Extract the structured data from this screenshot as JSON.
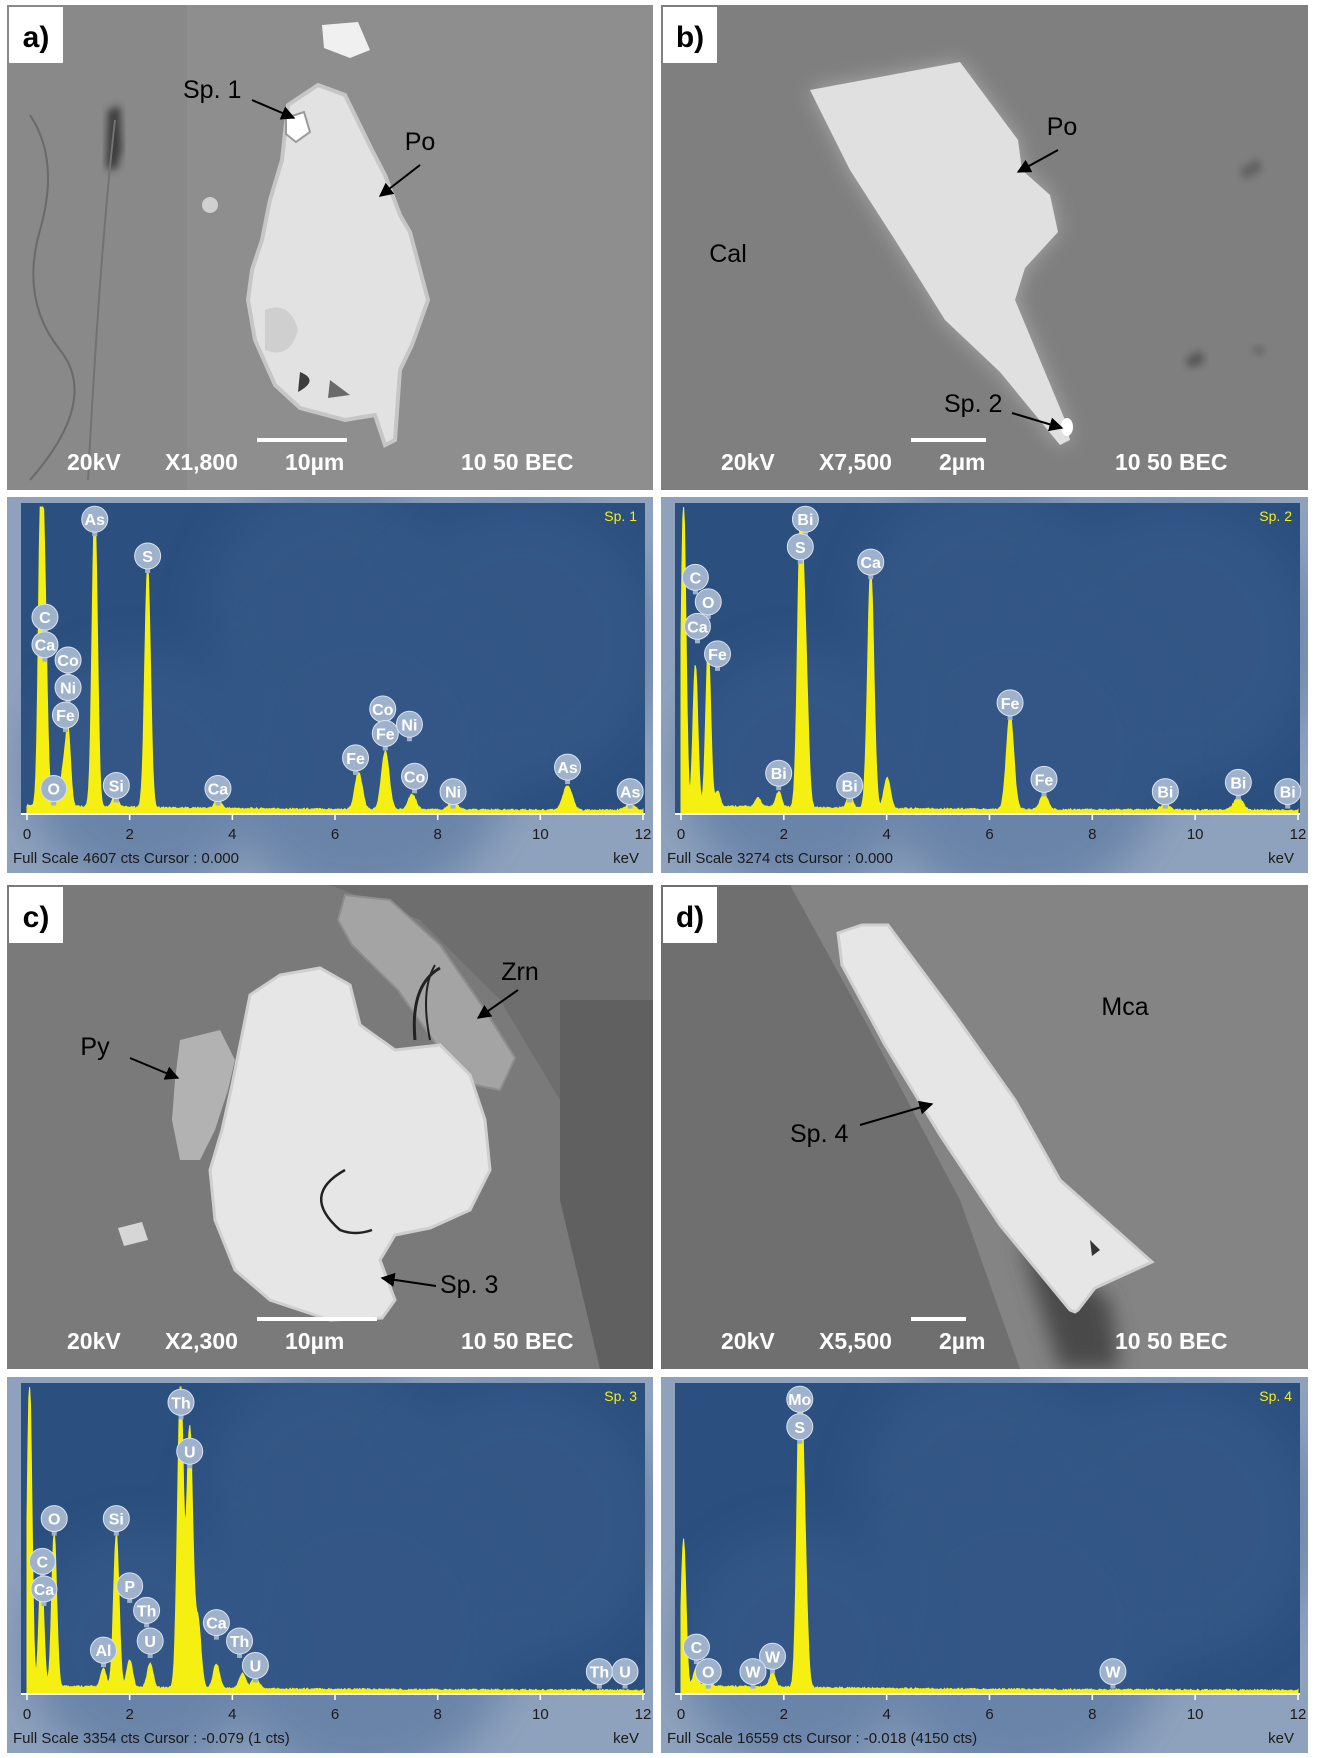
{
  "panels": [
    {
      "id": "a",
      "letter": "a)",
      "mineral_labels": [
        "Po"
      ],
      "spot_label": "Sp. 1",
      "sem_bar": {
        "kv": "20kV",
        "mag": "X1,800",
        "scale": "10µm",
        "mode": "10 50 BEC"
      }
    },
    {
      "id": "b",
      "letter": "b)",
      "mineral_labels": [
        "Po",
        "Cal"
      ],
      "spot_label": "Sp. 2",
      "sem_bar": {
        "kv": "20kV",
        "mag": "X7,500",
        "scale": "2µm",
        "mode": "10 50 BEC"
      }
    },
    {
      "id": "c",
      "letter": "c)",
      "mineral_labels": [
        "Zrn",
        "Py"
      ],
      "spot_label": "Sp. 3",
      "sem_bar": {
        "kv": "20kV",
        "mag": "X2,300",
        "scale": "10µm",
        "mode": "10 50 BEC"
      }
    },
    {
      "id": "d",
      "letter": "d)",
      "mineral_labels": [
        "Mca"
      ],
      "spot_label": "Sp. 4",
      "sem_bar": {
        "kv": "20kV",
        "mag": "X5,500",
        "scale": "2µm",
        "mode": "10 50 BEC"
      }
    }
  ],
  "spectra": [
    {
      "spot": "Sp. 1",
      "footer": {
        "scale_label": "Full Scale",
        "counts": "4607",
        "cts_unit": "cts",
        "cursor": "Cursor : 0.000",
        "extra": "",
        "unit": "keV"
      },
      "peaks": [
        [
          0.27,
          1.0
        ],
        [
          0.35,
          0.56
        ],
        [
          0.52,
          0.07
        ],
        [
          0.7,
          0.11
        ],
        [
          0.8,
          0.25
        ],
        [
          1.32,
          0.99
        ],
        [
          1.72,
          0.04
        ],
        [
          2.35,
          0.79
        ],
        [
          3.72,
          0.03
        ],
        [
          6.46,
          0.12
        ],
        [
          6.98,
          0.19
        ],
        [
          7.5,
          0.05
        ],
        [
          8.3,
          0.03
        ],
        [
          10.53,
          0.08
        ],
        [
          11.75,
          0.02
        ]
      ],
      "element_labels": [
        {
          "el": "As",
          "kev": 1.32,
          "lvl": 0.96
        },
        {
          "el": "S",
          "kev": 2.35,
          "lvl": 0.84
        },
        {
          "el": "C",
          "kev": 0.35,
          "lvl": 0.64
        },
        {
          "el": "Ca",
          "kev": 0.35,
          "lvl": 0.55
        },
        {
          "el": "Co",
          "kev": 0.8,
          "lvl": 0.5
        },
        {
          "el": "Ni",
          "kev": 0.8,
          "lvl": 0.41
        },
        {
          "el": "Fe",
          "kev": 0.75,
          "lvl": 0.32
        },
        {
          "el": "O",
          "kev": 0.52,
          "lvl": 0.08
        },
        {
          "el": "Si",
          "kev": 1.74,
          "lvl": 0.09
        },
        {
          "el": "Ca",
          "kev": 3.72,
          "lvl": 0.08
        },
        {
          "el": "Fe",
          "kev": 6.4,
          "lvl": 0.18
        },
        {
          "el": "Co",
          "kev": 6.93,
          "lvl": 0.34
        },
        {
          "el": "Fe",
          "kev": 6.98,
          "lvl": 0.26
        },
        {
          "el": "Ni",
          "kev": 7.45,
          "lvl": 0.29
        },
        {
          "el": "Co",
          "kev": 7.55,
          "lvl": 0.12
        },
        {
          "el": "Ni",
          "kev": 8.3,
          "lvl": 0.07
        },
        {
          "el": "As",
          "kev": 10.53,
          "lvl": 0.15
        },
        {
          "el": "As",
          "kev": 11.75,
          "lvl": 0.07
        }
      ]
    },
    {
      "spot": "Sp. 2",
      "footer": {
        "scale_label": "Full Scale",
        "counts": "3274",
        "cts_unit": "cts",
        "cursor": "Cursor : 0.000",
        "extra": "",
        "unit": "keV"
      },
      "peaks": [
        [
          0.05,
          1.0
        ],
        [
          0.28,
          0.46
        ],
        [
          0.53,
          0.52
        ],
        [
          0.71,
          0.05
        ],
        [
          1.5,
          0.03
        ],
        [
          1.9,
          0.05
        ],
        [
          2.32,
          0.88
        ],
        [
          2.42,
          0.45
        ],
        [
          3.28,
          0.04
        ],
        [
          3.69,
          0.78
        ],
        [
          4.01,
          0.1
        ],
        [
          6.4,
          0.31
        ],
        [
          7.06,
          0.05
        ],
        [
          9.42,
          0.02
        ],
        [
          10.84,
          0.04
        ]
      ],
      "element_labels": [
        {
          "el": "Bi",
          "kev": 2.42,
          "lvl": 0.96
        },
        {
          "el": "S",
          "kev": 2.32,
          "lvl": 0.87
        },
        {
          "el": "Ca",
          "kev": 3.69,
          "lvl": 0.82
        },
        {
          "el": "C",
          "kev": 0.28,
          "lvl": 0.77
        },
        {
          "el": "O",
          "kev": 0.53,
          "lvl": 0.69
        },
        {
          "el": "Ca",
          "kev": 0.32,
          "lvl": 0.61
        },
        {
          "el": "Fe",
          "kev": 0.71,
          "lvl": 0.52
        },
        {
          "el": "Fe",
          "kev": 6.4,
          "lvl": 0.36
        },
        {
          "el": "Bi",
          "kev": 1.9,
          "lvl": 0.13
        },
        {
          "el": "Bi",
          "kev": 3.28,
          "lvl": 0.09
        },
        {
          "el": "Fe",
          "kev": 7.06,
          "lvl": 0.11
        },
        {
          "el": "Bi",
          "kev": 9.42,
          "lvl": 0.07
        },
        {
          "el": "Bi",
          "kev": 10.84,
          "lvl": 0.1
        },
        {
          "el": "Bi",
          "kev": 11.8,
          "lvl": 0.07
        }
      ]
    },
    {
      "spot": "Sp. 3",
      "footer": {
        "scale_label": "Full Scale",
        "counts": "3354",
        "cts_unit": "cts",
        "cursor": "Cursor : -0.079",
        "extra": "(1 cts)",
        "unit": "keV"
      },
      "peaks": [
        [
          0.05,
          1.0
        ],
        [
          0.28,
          0.38
        ],
        [
          0.53,
          0.5
        ],
        [
          1.49,
          0.06
        ],
        [
          1.74,
          0.5
        ],
        [
          2.0,
          0.09
        ],
        [
          2.4,
          0.08
        ],
        [
          2.99,
          1.0
        ],
        [
          3.17,
          0.85
        ],
        [
          3.33,
          0.22
        ],
        [
          3.69,
          0.08
        ],
        [
          4.2,
          0.05
        ],
        [
          4.45,
          0.04
        ]
      ],
      "element_labels": [
        {
          "el": "Th",
          "kev": 3.0,
          "lvl": 0.95
        },
        {
          "el": "U",
          "kev": 3.17,
          "lvl": 0.79
        },
        {
          "el": "O",
          "kev": 0.53,
          "lvl": 0.57
        },
        {
          "el": "Si",
          "kev": 1.74,
          "lvl": 0.57
        },
        {
          "el": "C",
          "kev": 0.3,
          "lvl": 0.43
        },
        {
          "el": "Ca",
          "kev": 0.33,
          "lvl": 0.34
        },
        {
          "el": "P",
          "kev": 2.0,
          "lvl": 0.35
        },
        {
          "el": "Th",
          "kev": 2.33,
          "lvl": 0.27
        },
        {
          "el": "U",
          "kev": 2.4,
          "lvl": 0.17
        },
        {
          "el": "Al",
          "kev": 1.49,
          "lvl": 0.14
        },
        {
          "el": "Ca",
          "kev": 3.69,
          "lvl": 0.23
        },
        {
          "el": "Th",
          "kev": 4.14,
          "lvl": 0.17
        },
        {
          "el": "U",
          "kev": 4.45,
          "lvl": 0.09
        },
        {
          "el": "Th",
          "kev": 11.15,
          "lvl": 0.07
        },
        {
          "el": "U",
          "kev": 11.65,
          "lvl": 0.07
        }
      ]
    },
    {
      "spot": "Sp. 4",
      "footer": {
        "scale_label": "Full Scale",
        "counts": "16559",
        "cts_unit": "cts",
        "cursor": "Cursor : -0.018",
        "extra": "(4150 cts)",
        "unit": "keV"
      },
      "peaks": [
        [
          0.05,
          0.48
        ],
        [
          0.28,
          0.05
        ],
        [
          0.52,
          0.02
        ],
        [
          1.78,
          0.05
        ],
        [
          2.31,
          0.99
        ],
        [
          2.4,
          0.4
        ]
      ],
      "element_labels": [
        {
          "el": "Mo",
          "kev": 2.31,
          "lvl": 0.96
        },
        {
          "el": "S",
          "kev": 2.31,
          "lvl": 0.87
        },
        {
          "el": "C",
          "kev": 0.3,
          "lvl": 0.15
        },
        {
          "el": "O",
          "kev": 0.53,
          "lvl": 0.07
        },
        {
          "el": "W",
          "kev": 1.78,
          "lvl": 0.12
        },
        {
          "el": "W",
          "kev": 1.4,
          "lvl": 0.07
        },
        {
          "el": "W",
          "kev": 8.4,
          "lvl": 0.07
        }
      ]
    }
  ],
  "spectrum_axis": {
    "ticks": [
      "0",
      "2",
      "4",
      "6",
      "8",
      "10",
      "12"
    ],
    "max_kev": 12
  },
  "colors": {
    "spectrum_fill": "#f5f012",
    "spectrum_bg": "#2b4f7e",
    "label_marker": "#9fb2cc",
    "sem_gray": "#8a8a8a"
  }
}
